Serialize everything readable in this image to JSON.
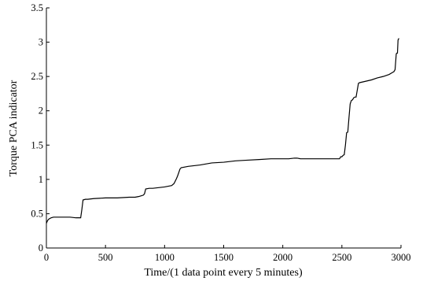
{
  "chart_data": {
    "type": "line",
    "xlabel": "Time/(1 data point every 5 minutes)",
    "ylabel": "Torque PCA indicator",
    "xlim": [
      0,
      3000
    ],
    "ylim": [
      0,
      3.5
    ],
    "x_ticks": [
      0,
      500,
      1000,
      1500,
      2000,
      2500,
      3000
    ],
    "x_tick_labels": [
      "0",
      "500",
      "1000",
      "1500",
      "2000",
      "2500",
      "3000"
    ],
    "y_ticks": [
      0,
      0.5,
      1,
      1.5,
      2,
      2.5,
      3,
      3.5
    ],
    "y_tick_labels": [
      "0",
      "0.5",
      "1",
      "1.5",
      "2",
      "2.5",
      "3",
      "3.5"
    ],
    "grid": false,
    "line_color": "#000000",
    "series": [
      {
        "x": [
          0,
          10,
          20,
          40,
          60,
          100,
          150,
          200,
          250,
          270,
          280,
          290,
          300,
          310,
          330,
          350,
          400,
          500,
          600,
          700,
          750,
          780,
          800,
          820,
          830,
          840,
          870,
          900,
          950,
          1000,
          1030,
          1060,
          1080,
          1100,
          1110,
          1120,
          1130,
          1140,
          1200,
          1300,
          1400,
          1500,
          1600,
          1700,
          1800,
          1900,
          2000,
          2050,
          2100,
          2120,
          2150,
          2200,
          2300,
          2400,
          2470,
          2480,
          2490,
          2500,
          2510,
          2520,
          2530,
          2540,
          2550,
          2560,
          2570,
          2580,
          2590,
          2600,
          2610,
          2620,
          2630,
          2640,
          2650,
          2700,
          2750,
          2800,
          2850,
          2900,
          2920,
          2930,
          2940,
          2950,
          2960,
          2965,
          2970,
          2975,
          2980,
          2985
        ],
        "y": [
          0.36,
          0.4,
          0.42,
          0.44,
          0.45,
          0.45,
          0.45,
          0.45,
          0.44,
          0.44,
          0.44,
          0.44,
          0.56,
          0.7,
          0.71,
          0.71,
          0.72,
          0.73,
          0.73,
          0.74,
          0.74,
          0.75,
          0.76,
          0.77,
          0.79,
          0.86,
          0.87,
          0.87,
          0.88,
          0.89,
          0.9,
          0.91,
          0.94,
          1.01,
          1.05,
          1.1,
          1.15,
          1.17,
          1.19,
          1.21,
          1.24,
          1.25,
          1.27,
          1.28,
          1.29,
          1.3,
          1.3,
          1.3,
          1.31,
          1.31,
          1.3,
          1.3,
          1.3,
          1.3,
          1.3,
          1.3,
          1.33,
          1.33,
          1.35,
          1.36,
          1.5,
          1.68,
          1.69,
          1.9,
          2.1,
          2.15,
          2.16,
          2.19,
          2.2,
          2.2,
          2.3,
          2.4,
          2.41,
          2.43,
          2.45,
          2.48,
          2.5,
          2.53,
          2.55,
          2.56,
          2.57,
          2.6,
          2.83,
          2.84,
          2.84,
          3.03,
          3.05,
          3.05
        ]
      }
    ]
  }
}
